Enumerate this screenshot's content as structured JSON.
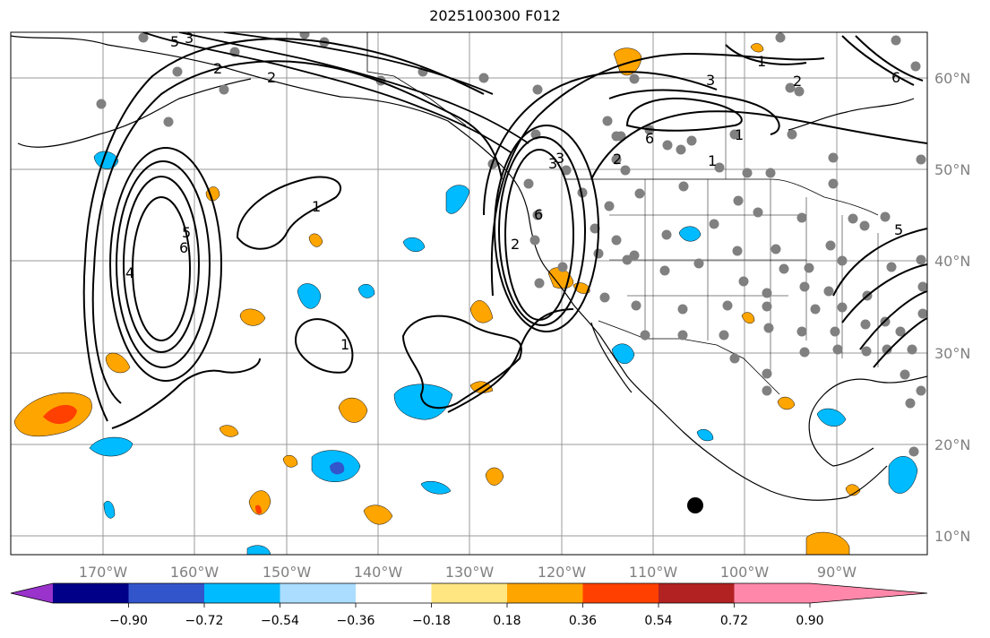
{
  "title": "2025100300 F012",
  "lon_ticks": [
    "170°W",
    "160°W",
    "150°W",
    "140°W",
    "130°W",
    "120°W",
    "110°W",
    "100°W",
    "90°W"
  ],
  "lat_ticks": [
    "60°N",
    "50°N",
    "40°N",
    "30°N",
    "20°N",
    "10°N"
  ],
  "colorbar": {
    "colors": [
      "#9933cc",
      "#000088",
      "#3355cc",
      "#00bbff",
      "#aaddff",
      "#ffffff",
      "#ffe680",
      "#ffa500",
      "#ff4000",
      "#b22222",
      "#ff88aa"
    ],
    "labels": [
      "−0.90",
      "−0.72",
      "−0.54",
      "−0.36",
      "−0.18",
      "0.18",
      "0.36",
      "0.54",
      "0.72",
      "0.90"
    ]
  },
  "contour_labels": [
    "1",
    "2",
    "3",
    "1",
    "6",
    "1",
    "2",
    "3",
    "4",
    "5",
    "6",
    "3",
    "2",
    "1",
    "6",
    "5",
    "3",
    "2",
    "1",
    "5",
    "6",
    "2"
  ]
}
